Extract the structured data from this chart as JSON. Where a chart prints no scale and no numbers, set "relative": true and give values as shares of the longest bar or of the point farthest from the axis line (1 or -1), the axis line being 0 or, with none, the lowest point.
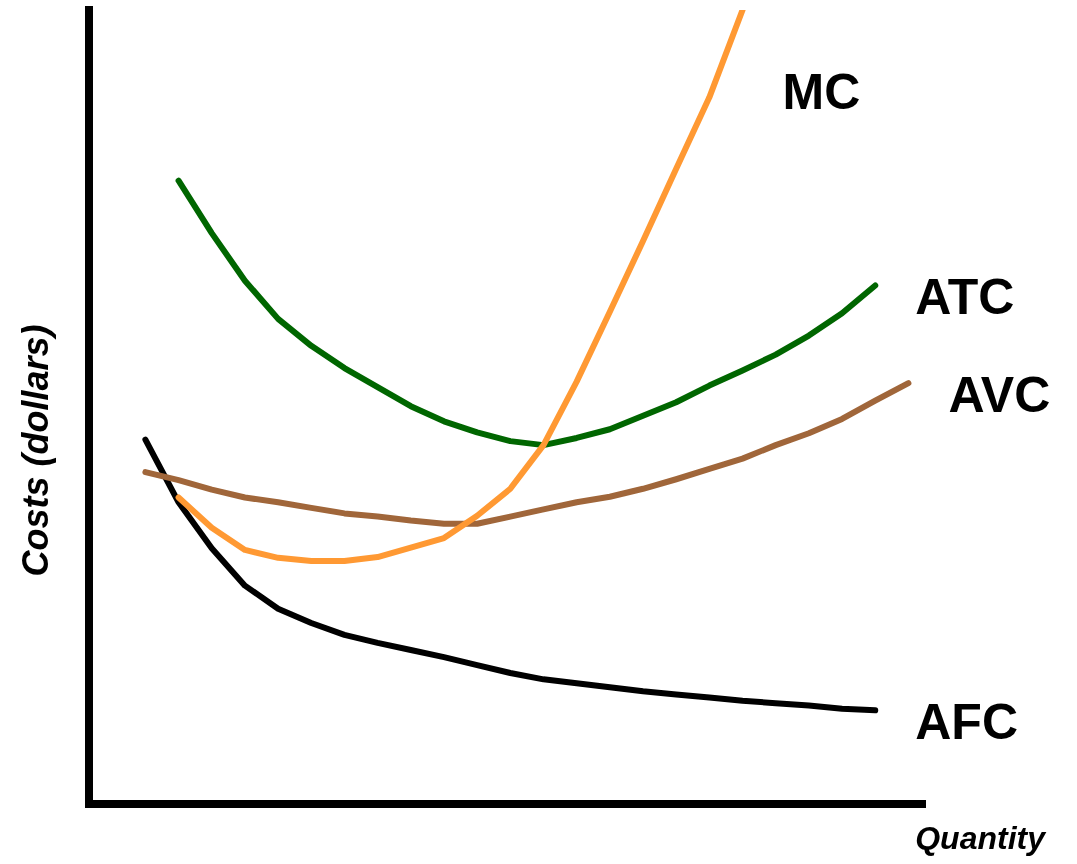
{
  "chart_data": {
    "type": "line",
    "relative": true,
    "xlabel": "Quantity",
    "ylabel": "Costs (dollars)",
    "legend": false,
    "marker": "none",
    "line_style": "solid",
    "categories": [
      null,
      null,
      null,
      null,
      null,
      null,
      null,
      null,
      null,
      null,
      null,
      null,
      null,
      null,
      null,
      null,
      null,
      null,
      null,
      null,
      null,
      null,
      null,
      null
    ],
    "series": [
      {
        "name": "MC",
        "color": "#ff9933",
        "values": [
          null,
          0.386,
          0.348,
          0.32,
          0.31,
          0.306,
          0.306,
          0.311,
          0.323,
          0.335,
          0.363,
          0.397,
          0.452,
          0.532,
          0.62,
          0.709,
          0.8,
          0.89,
          1,
          null,
          null,
          null,
          null,
          null
        ]
      },
      {
        "name": "ATC",
        "color": "#006600",
        "values": [
          null,
          0.785,
          0.719,
          0.659,
          0.611,
          0.577,
          0.549,
          0.525,
          0.501,
          0.482,
          0.468,
          0.457,
          0.452,
          0.461,
          0.472,
          0.489,
          0.506,
          0.527,
          0.546,
          0.566,
          0.59,
          0.618,
          0.653,
          null
        ]
      },
      {
        "name": "AVC",
        "color": "#a0663a",
        "values": [
          0.418,
          0.408,
          0.396,
          0.386,
          0.38,
          0.373,
          0.366,
          0.362,
          0.357,
          0.353,
          0.353,
          0.362,
          0.371,
          0.38,
          0.387,
          0.397,
          0.409,
          0.422,
          0.435,
          0.452,
          0.467,
          0.485,
          0.508,
          0.53
        ]
      },
      {
        "name": "AFC",
        "color": "#000000",
        "values": [
          0.459,
          0.38,
          0.322,
          0.275,
          0.246,
          0.228,
          0.213,
          0.203,
          0.194,
          0.185,
          0.175,
          0.165,
          0.157,
          0.152,
          0.147,
          0.142,
          0.138,
          0.134,
          0.13,
          0.127,
          0.124,
          0.12,
          0.118,
          null
        ]
      }
    ]
  }
}
